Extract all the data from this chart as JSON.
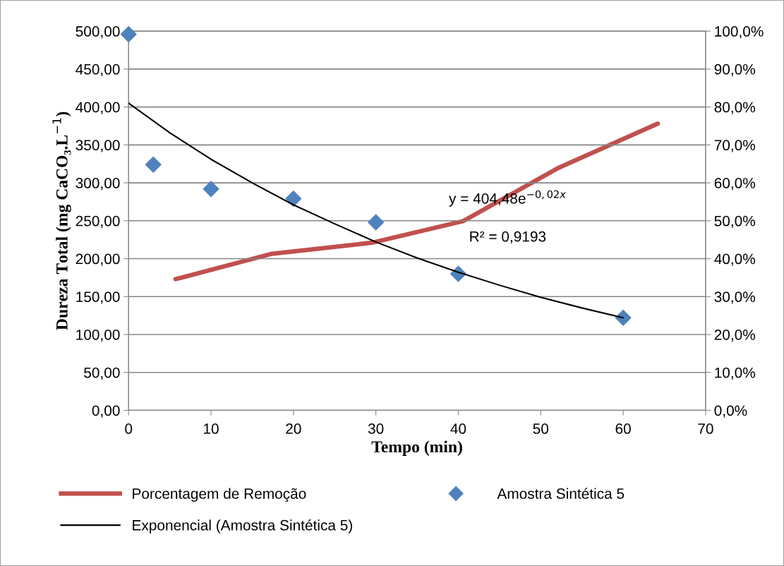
{
  "chart_data": {
    "type": "scatter",
    "xlabel": "Tempo (min)",
    "ylabel": "Dureza Total (mg CaCO₃.L$^{−1}$)",
    "xlim": [
      0,
      70
    ],
    "xticks": [
      0,
      10,
      20,
      30,
      40,
      50,
      60,
      70
    ],
    "ylim": [
      0,
      500
    ],
    "yticks": [
      {
        "value": 0,
        "label": "0,00"
      },
      {
        "value": 50,
        "label": "50,00"
      },
      {
        "value": 100,
        "label": "100,00"
      },
      {
        "value": 150,
        "label": "150,00"
      },
      {
        "value": 200,
        "label": "200,00"
      },
      {
        "value": 250,
        "label": "250,00"
      },
      {
        "value": 300,
        "label": "300,00"
      },
      {
        "value": 350,
        "label": "350,00"
      },
      {
        "value": 400,
        "label": "400,00"
      },
      {
        "value": 450,
        "label": "450,00"
      },
      {
        "value": 500,
        "label": "500,00"
      }
    ],
    "y2lim": [
      0,
      100
    ],
    "y2ticks": [
      {
        "value": 0,
        "label": "0,0%"
      },
      {
        "value": 10,
        "label": "10,0%"
      },
      {
        "value": 20,
        "label": "20,0%"
      },
      {
        "value": 30,
        "label": "30,0%"
      },
      {
        "value": 40,
        "label": "40,0%"
      },
      {
        "value": 50,
        "label": "50,0%"
      },
      {
        "value": 60,
        "label": "60,0%"
      },
      {
        "value": 70,
        "label": "70,0%"
      },
      {
        "value": 80,
        "label": "80,0%"
      },
      {
        "value": 90,
        "label": "90,0%"
      },
      {
        "value": 100,
        "label": "100,0%"
      }
    ],
    "grid": "y",
    "legend": "bottom",
    "series": [
      {
        "name": "Porcentagem de Remoção",
        "type": "line",
        "axis": "y2",
        "color": "#c0504d",
        "marker": "none",
        "line_style": "solid",
        "x": [
          5.7,
          17.4,
          29.5,
          40.6,
          52.2,
          64.2
        ],
        "values": [
          34.6,
          41.3,
          44.2,
          49.9,
          64.0,
          75.6
        ]
      },
      {
        "name": "Amostra Sintética 5",
        "color": "#4f81bd",
        "marker": "diamond",
        "x": [
          0,
          3,
          10,
          20,
          30,
          40,
          60
        ],
        "values": [
          496,
          324,
          292,
          279,
          248,
          180,
          122
        ]
      },
      {
        "name": "Exponencial (Amostra Sintética 5)",
        "type": "line",
        "color": "#000000",
        "marker": "none",
        "line_style": "solid",
        "x": [
          0,
          5,
          10,
          15,
          20,
          25,
          30,
          35,
          40,
          45,
          50,
          55,
          60
        ],
        "values": [
          405,
          366,
          331,
          300,
          271,
          246,
          222,
          201,
          182,
          165,
          149,
          135,
          122
        ]
      }
    ],
    "annotations": [
      "y = 404,48e$^{−0,02x}$",
      "R² = 0,9193"
    ]
  }
}
